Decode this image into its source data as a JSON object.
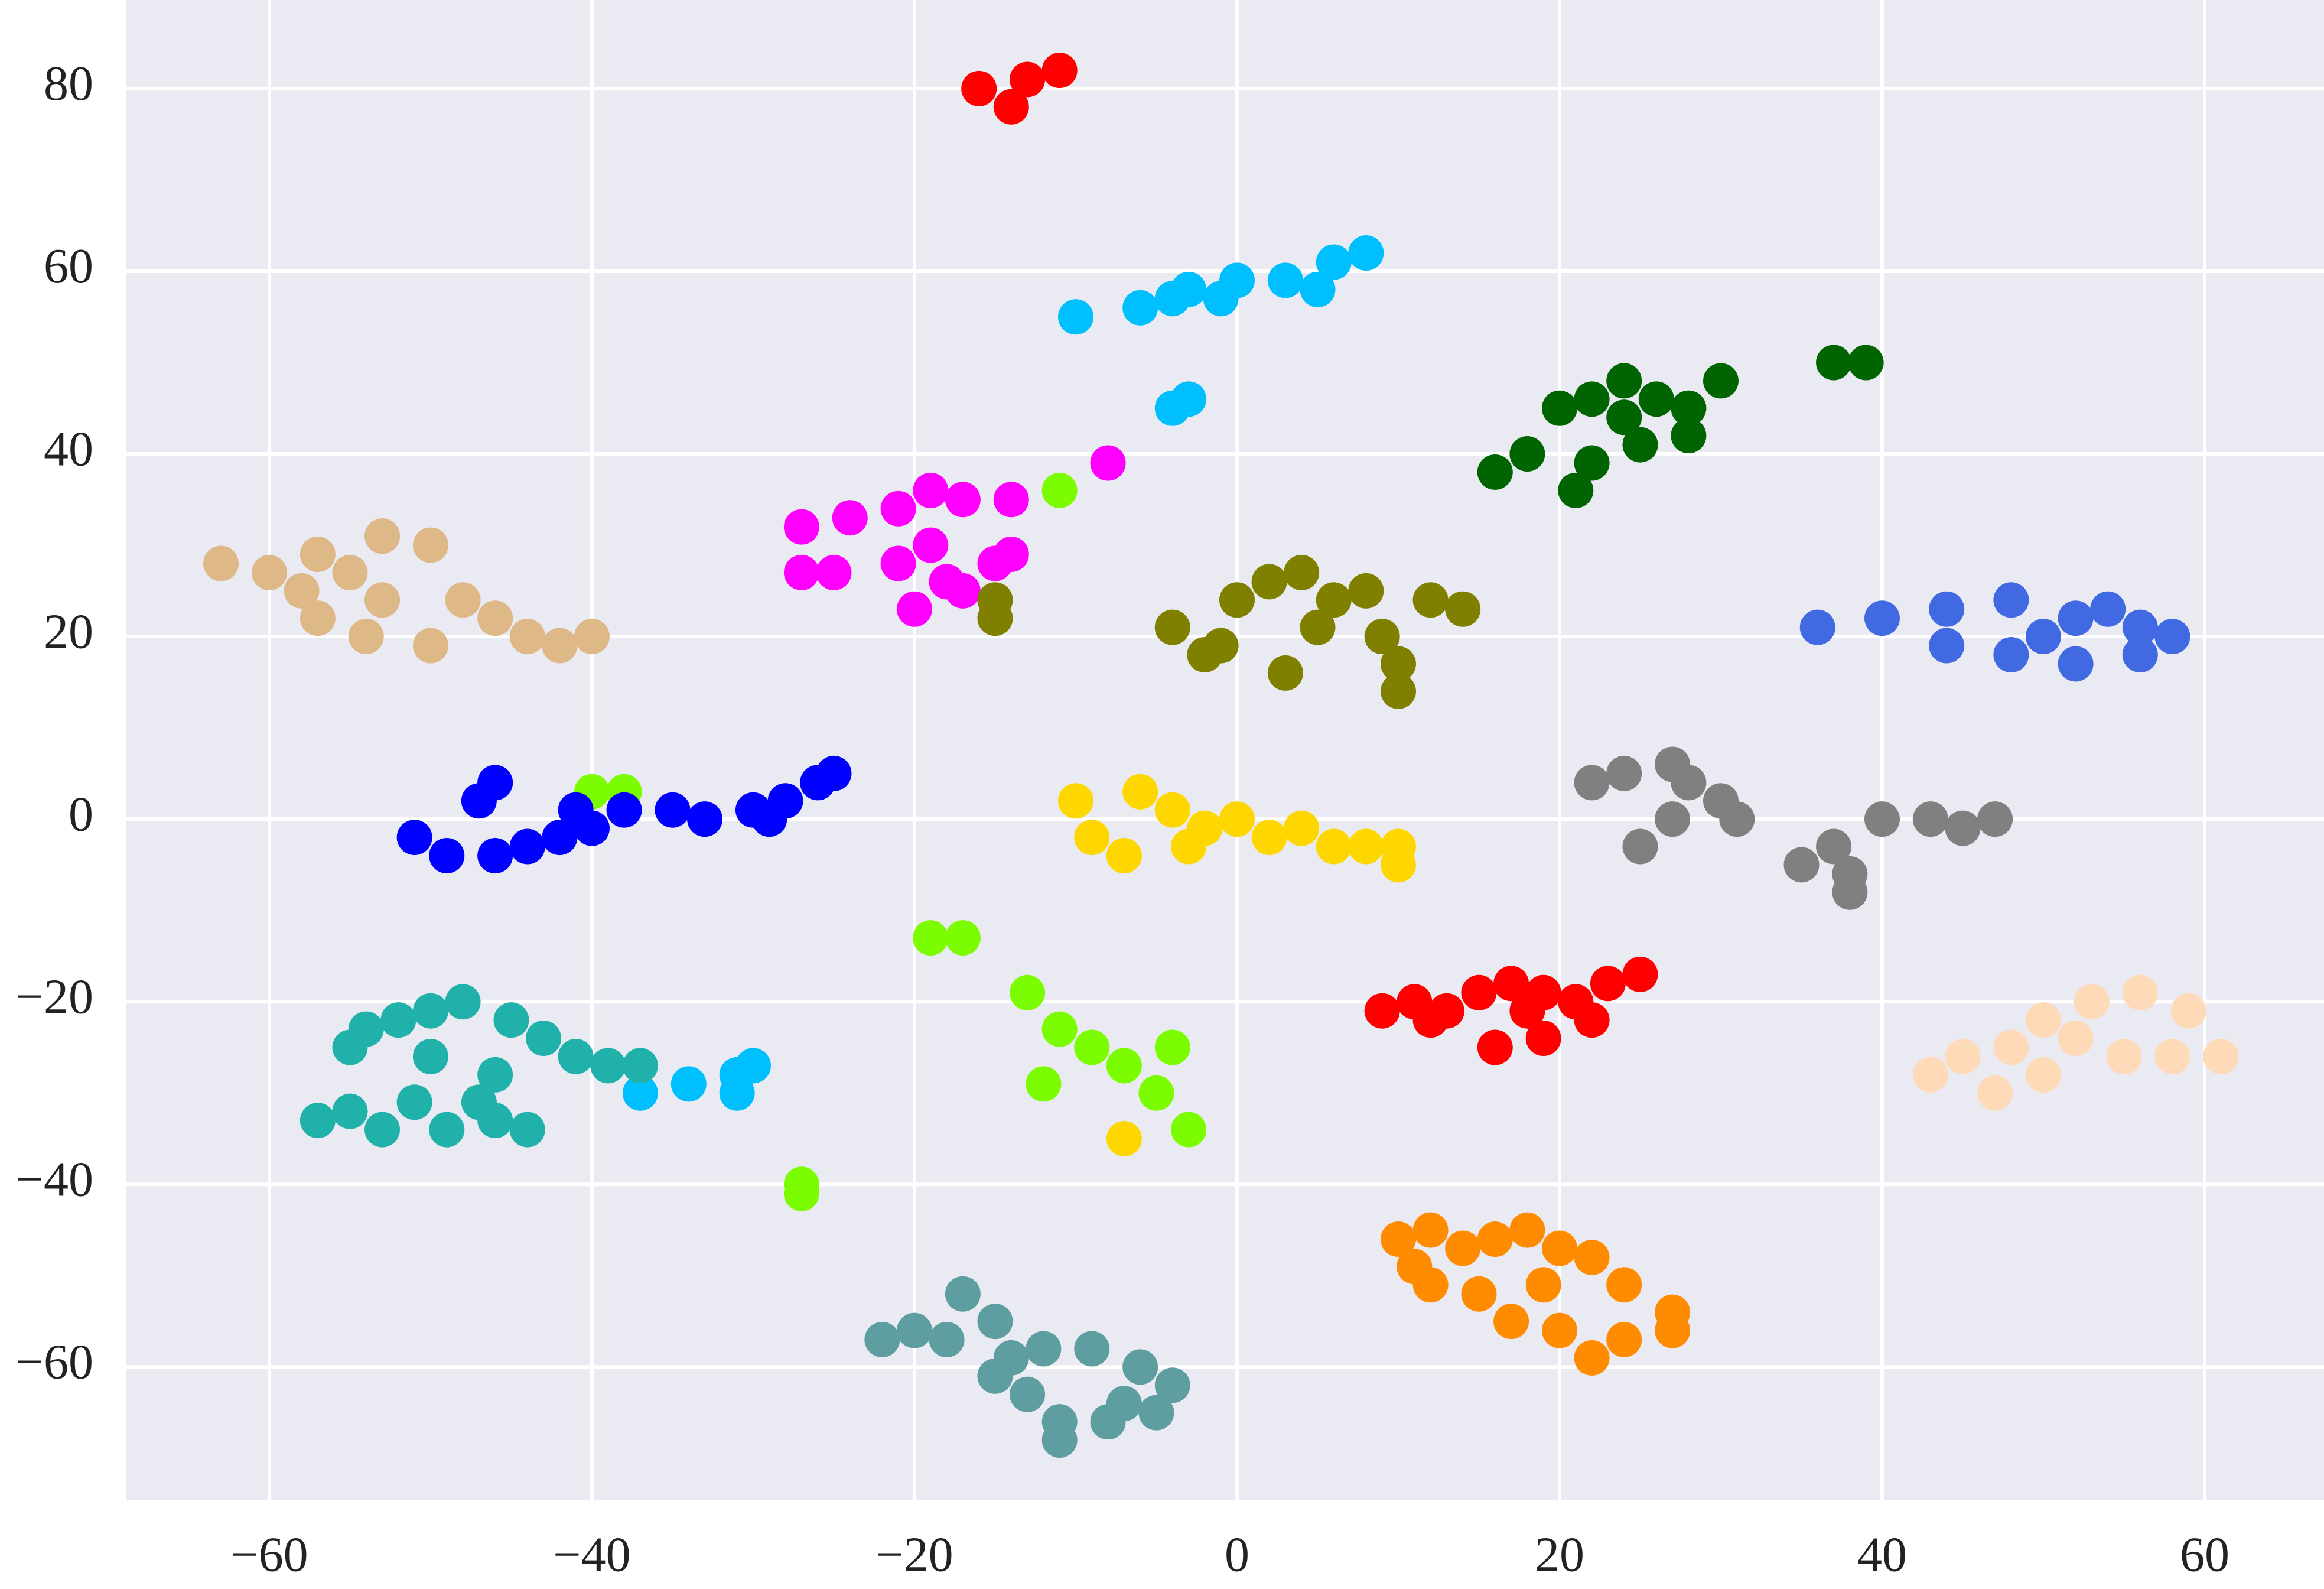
{
  "chart_data": {
    "type": "scatter",
    "xlim": [
      -68.9,
      67.4
    ],
    "ylim": [
      -74.6,
      89.7
    ],
    "xticks": [
      {
        "value": -60,
        "label": "−60"
      },
      {
        "value": -40,
        "label": "−40"
      },
      {
        "value": -20,
        "label": "−20"
      },
      0,
      20,
      40,
      60
    ],
    "yticks": [
      {
        "value": -60,
        "label": "−60"
      },
      {
        "value": -40,
        "label": "−40"
      },
      {
        "value": -20,
        "label": "−20"
      },
      0,
      20,
      40,
      60,
      80
    ],
    "grid": true,
    "series": [
      {
        "color": "#ff0000",
        "x": [
          -16,
          -14,
          -13,
          -11,
          9,
          11,
          13,
          15,
          17,
          19,
          21,
          23,
          25,
          22,
          19,
          16,
          12,
          18
        ],
        "y": [
          80,
          78,
          81,
          82,
          -21,
          -20,
          -21,
          -19,
          -18,
          -19,
          -20,
          -18,
          -17,
          -22,
          -24,
          -25,
          -22,
          -21
        ]
      },
      {
        "color": "#00bfff",
        "x": [
          -10,
          -6,
          -3,
          0,
          3,
          6,
          8,
          5,
          -1,
          -4,
          -4,
          -3,
          -37,
          -34,
          -31,
          -30,
          -31
        ],
        "y": [
          55,
          56,
          58,
          59,
          59,
          61,
          62,
          58,
          57,
          57,
          45,
          46,
          -30,
          -29,
          -28,
          -27,
          -30
        ]
      },
      {
        "color": "#006400",
        "x": [
          16,
          18,
          20,
          22,
          24,
          26,
          28,
          25,
          22,
          21,
          28,
          30,
          24,
          37,
          39
        ],
        "y": [
          38,
          40,
          45,
          46,
          48,
          46,
          45,
          41,
          39,
          36,
          42,
          48,
          44,
          50,
          50
        ]
      },
      {
        "color": "#ff00ff",
        "x": [
          -27,
          -24,
          -21,
          -19,
          -17,
          -14,
          -19,
          -21,
          -18,
          -20,
          -17,
          -15,
          -14,
          -27,
          -25,
          -8
        ],
        "y": [
          32,
          33,
          34,
          36,
          35,
          35,
          30,
          28,
          26,
          23,
          25,
          28,
          29,
          27,
          27,
          39
        ]
      },
      {
        "color": "#7cfc00",
        "x": [
          -11,
          -40,
          -38,
          -19,
          -17,
          -13,
          -11,
          -9,
          -7,
          -5,
          -3,
          -4,
          -12,
          -27,
          -27
        ],
        "y": [
          36,
          3,
          3,
          -13,
          -13,
          -19,
          -23,
          -25,
          -27,
          -30,
          -34,
          -25,
          -29,
          -40,
          -41
        ]
      },
      {
        "color": "#deb887",
        "x": [
          -63,
          -60,
          -58,
          -57,
          -55,
          -53,
          -50,
          -57,
          -54,
          -50,
          -46,
          -44,
          -42,
          -40,
          -48,
          -53
        ],
        "y": [
          28,
          27,
          25,
          29,
          27,
          31,
          30,
          22,
          20,
          19,
          22,
          20,
          19,
          20,
          24,
          24
        ]
      },
      {
        "color": "#808000",
        "x": [
          -15,
          -15,
          -4,
          -2,
          0,
          2,
          4,
          6,
          8,
          9,
          10,
          10,
          3,
          -1,
          12,
          14,
          5
        ],
        "y": [
          24,
          22,
          21,
          18,
          24,
          26,
          27,
          24,
          25,
          20,
          17,
          14,
          16,
          19,
          24,
          23,
          21
        ]
      },
      {
        "color": "#4169e1",
        "x": [
          36,
          40,
          44,
          48,
          52,
          56,
          58,
          56,
          52,
          48,
          44,
          50,
          54
        ],
        "y": [
          21,
          22,
          23,
          24,
          22,
          21,
          20,
          18,
          17,
          18,
          19,
          20,
          23
        ]
      },
      {
        "color": "#0000ff",
        "x": [
          -51,
          -49,
          -46,
          -44,
          -42,
          -40,
          -38,
          -35,
          -33,
          -30,
          -28,
          -26,
          -25,
          -47,
          -46,
          -41,
          -29
        ],
        "y": [
          -2,
          -4,
          -4,
          -3,
          -2,
          -1,
          1,
          1,
          0,
          1,
          2,
          4,
          5,
          2,
          4,
          1,
          0
        ]
      },
      {
        "color": "#ffd700",
        "x": [
          -10,
          -9,
          -7,
          -6,
          -4,
          -2,
          0,
          2,
          4,
          6,
          8,
          10,
          10,
          -3,
          -7
        ],
        "y": [
          2,
          -2,
          -4,
          3,
          1,
          -1,
          0,
          -2,
          -1,
          -3,
          -3,
          -3,
          -5,
          -3,
          -35
        ]
      },
      {
        "color": "#808080",
        "x": [
          22,
          24,
          27,
          28,
          30,
          31,
          27,
          25,
          35,
          37,
          40,
          43,
          45,
          47,
          38,
          38
        ],
        "y": [
          4,
          5,
          6,
          4,
          2,
          0,
          0,
          -3,
          -5,
          -3,
          0,
          0,
          -1,
          0,
          -8,
          -6
        ]
      },
      {
        "color": "#20b2aa",
        "x": [
          -57,
          -55,
          -53,
          -51,
          -49,
          -46,
          -44,
          -55,
          -54,
          -52,
          -50,
          -48,
          -45,
          -43,
          -41,
          -39,
          -37,
          -50,
          -46,
          -47
        ],
        "y": [
          -33,
          -32,
          -34,
          -31,
          -34,
          -33,
          -34,
          -25,
          -23,
          -22,
          -21,
          -20,
          -22,
          -24,
          -26,
          -27,
          -27,
          -26,
          -28,
          -31
        ]
      },
      {
        "color": "#ffdab9",
        "x": [
          43,
          45,
          48,
          50,
          53,
          56,
          59,
          61,
          58,
          55,
          50,
          47,
          52
        ],
        "y": [
          -28,
          -26,
          -25,
          -22,
          -20,
          -19,
          -21,
          -26,
          -26,
          -26,
          -28,
          -30,
          -24
        ]
      },
      {
        "color": "#ff8c00",
        "x": [
          10,
          12,
          14,
          16,
          18,
          20,
          22,
          24,
          27,
          27,
          24,
          22,
          20,
          17,
          15,
          12,
          11,
          19
        ],
        "y": [
          -46,
          -45,
          -47,
          -46,
          -45,
          -47,
          -48,
          -51,
          -54,
          -56,
          -57,
          -59,
          -56,
          -55,
          -52,
          -51,
          -49,
          -51
        ]
      },
      {
        "color": "#5f9ea0",
        "x": [
          -22,
          -20,
          -18,
          -17,
          -15,
          -14,
          -12,
          -9,
          -6,
          -4,
          -5,
          -8,
          -11,
          -13,
          -15,
          -11,
          -7
        ],
        "y": [
          -57,
          -56,
          -57,
          -52,
          -55,
          -59,
          -58,
          -58,
          -60,
          -62,
          -65,
          -66,
          -66,
          -63,
          -61,
          -68,
          -64
        ]
      }
    ]
  }
}
